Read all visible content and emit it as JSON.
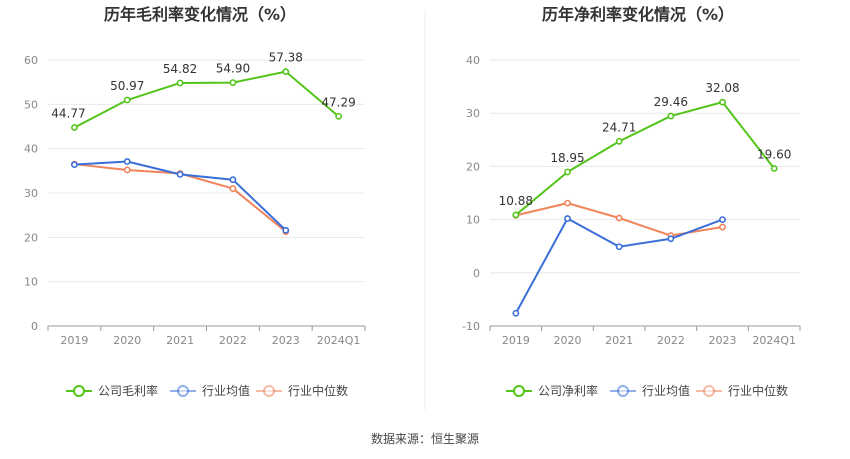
{
  "source": "数据来源：恒生聚源",
  "chart_data": [
    {
      "type": "line",
      "title": "历年毛利率变化情况（%）",
      "categories": [
        "2019",
        "2020",
        "2021",
        "2022",
        "2023",
        "2024Q1"
      ],
      "ylim": [
        0,
        60
      ],
      "yticks": [
        0,
        10,
        20,
        30,
        40,
        50,
        60
      ],
      "series": [
        {
          "name": "公司毛利率",
          "color": "#52c41a",
          "values": [
            44.77,
            50.97,
            54.82,
            54.9,
            57.38,
            47.29
          ],
          "labels": [
            "44.77",
            "50.97",
            "54.82",
            "54.90",
            "57.38",
            "47.29"
          ]
        },
        {
          "name": "行业均值",
          "color": "#3a6fd8",
          "values": [
            36.4,
            37.1,
            34.2,
            33.0,
            21.6,
            null
          ]
        },
        {
          "name": "行业中位数",
          "color": "#f0845a",
          "values": [
            36.5,
            35.2,
            34.4,
            31.0,
            21.3,
            null
          ]
        }
      ]
    },
    {
      "type": "line",
      "title": "历年净利率变化情况（%）",
      "categories": [
        "2019",
        "2020",
        "2021",
        "2022",
        "2023",
        "2024Q1"
      ],
      "ylim": [
        -10,
        40
      ],
      "yticks": [
        -10,
        0,
        10,
        20,
        30,
        40
      ],
      "series": [
        {
          "name": "公司净利率",
          "color": "#52c41a",
          "values": [
            10.88,
            18.95,
            24.71,
            29.46,
            32.08,
            19.6
          ],
          "labels": [
            "10.88",
            "18.95",
            "24.71",
            "29.46",
            "32.08",
            "19.60"
          ]
        },
        {
          "name": "行业均值",
          "color": "#3a6fd8",
          "values": [
            -7.6,
            10.2,
            4.9,
            6.4,
            10.0,
            null
          ]
        },
        {
          "name": "行业中位数",
          "color": "#f0845a",
          "values": [
            10.8,
            13.1,
            10.3,
            7.0,
            8.6,
            null
          ]
        }
      ]
    }
  ]
}
